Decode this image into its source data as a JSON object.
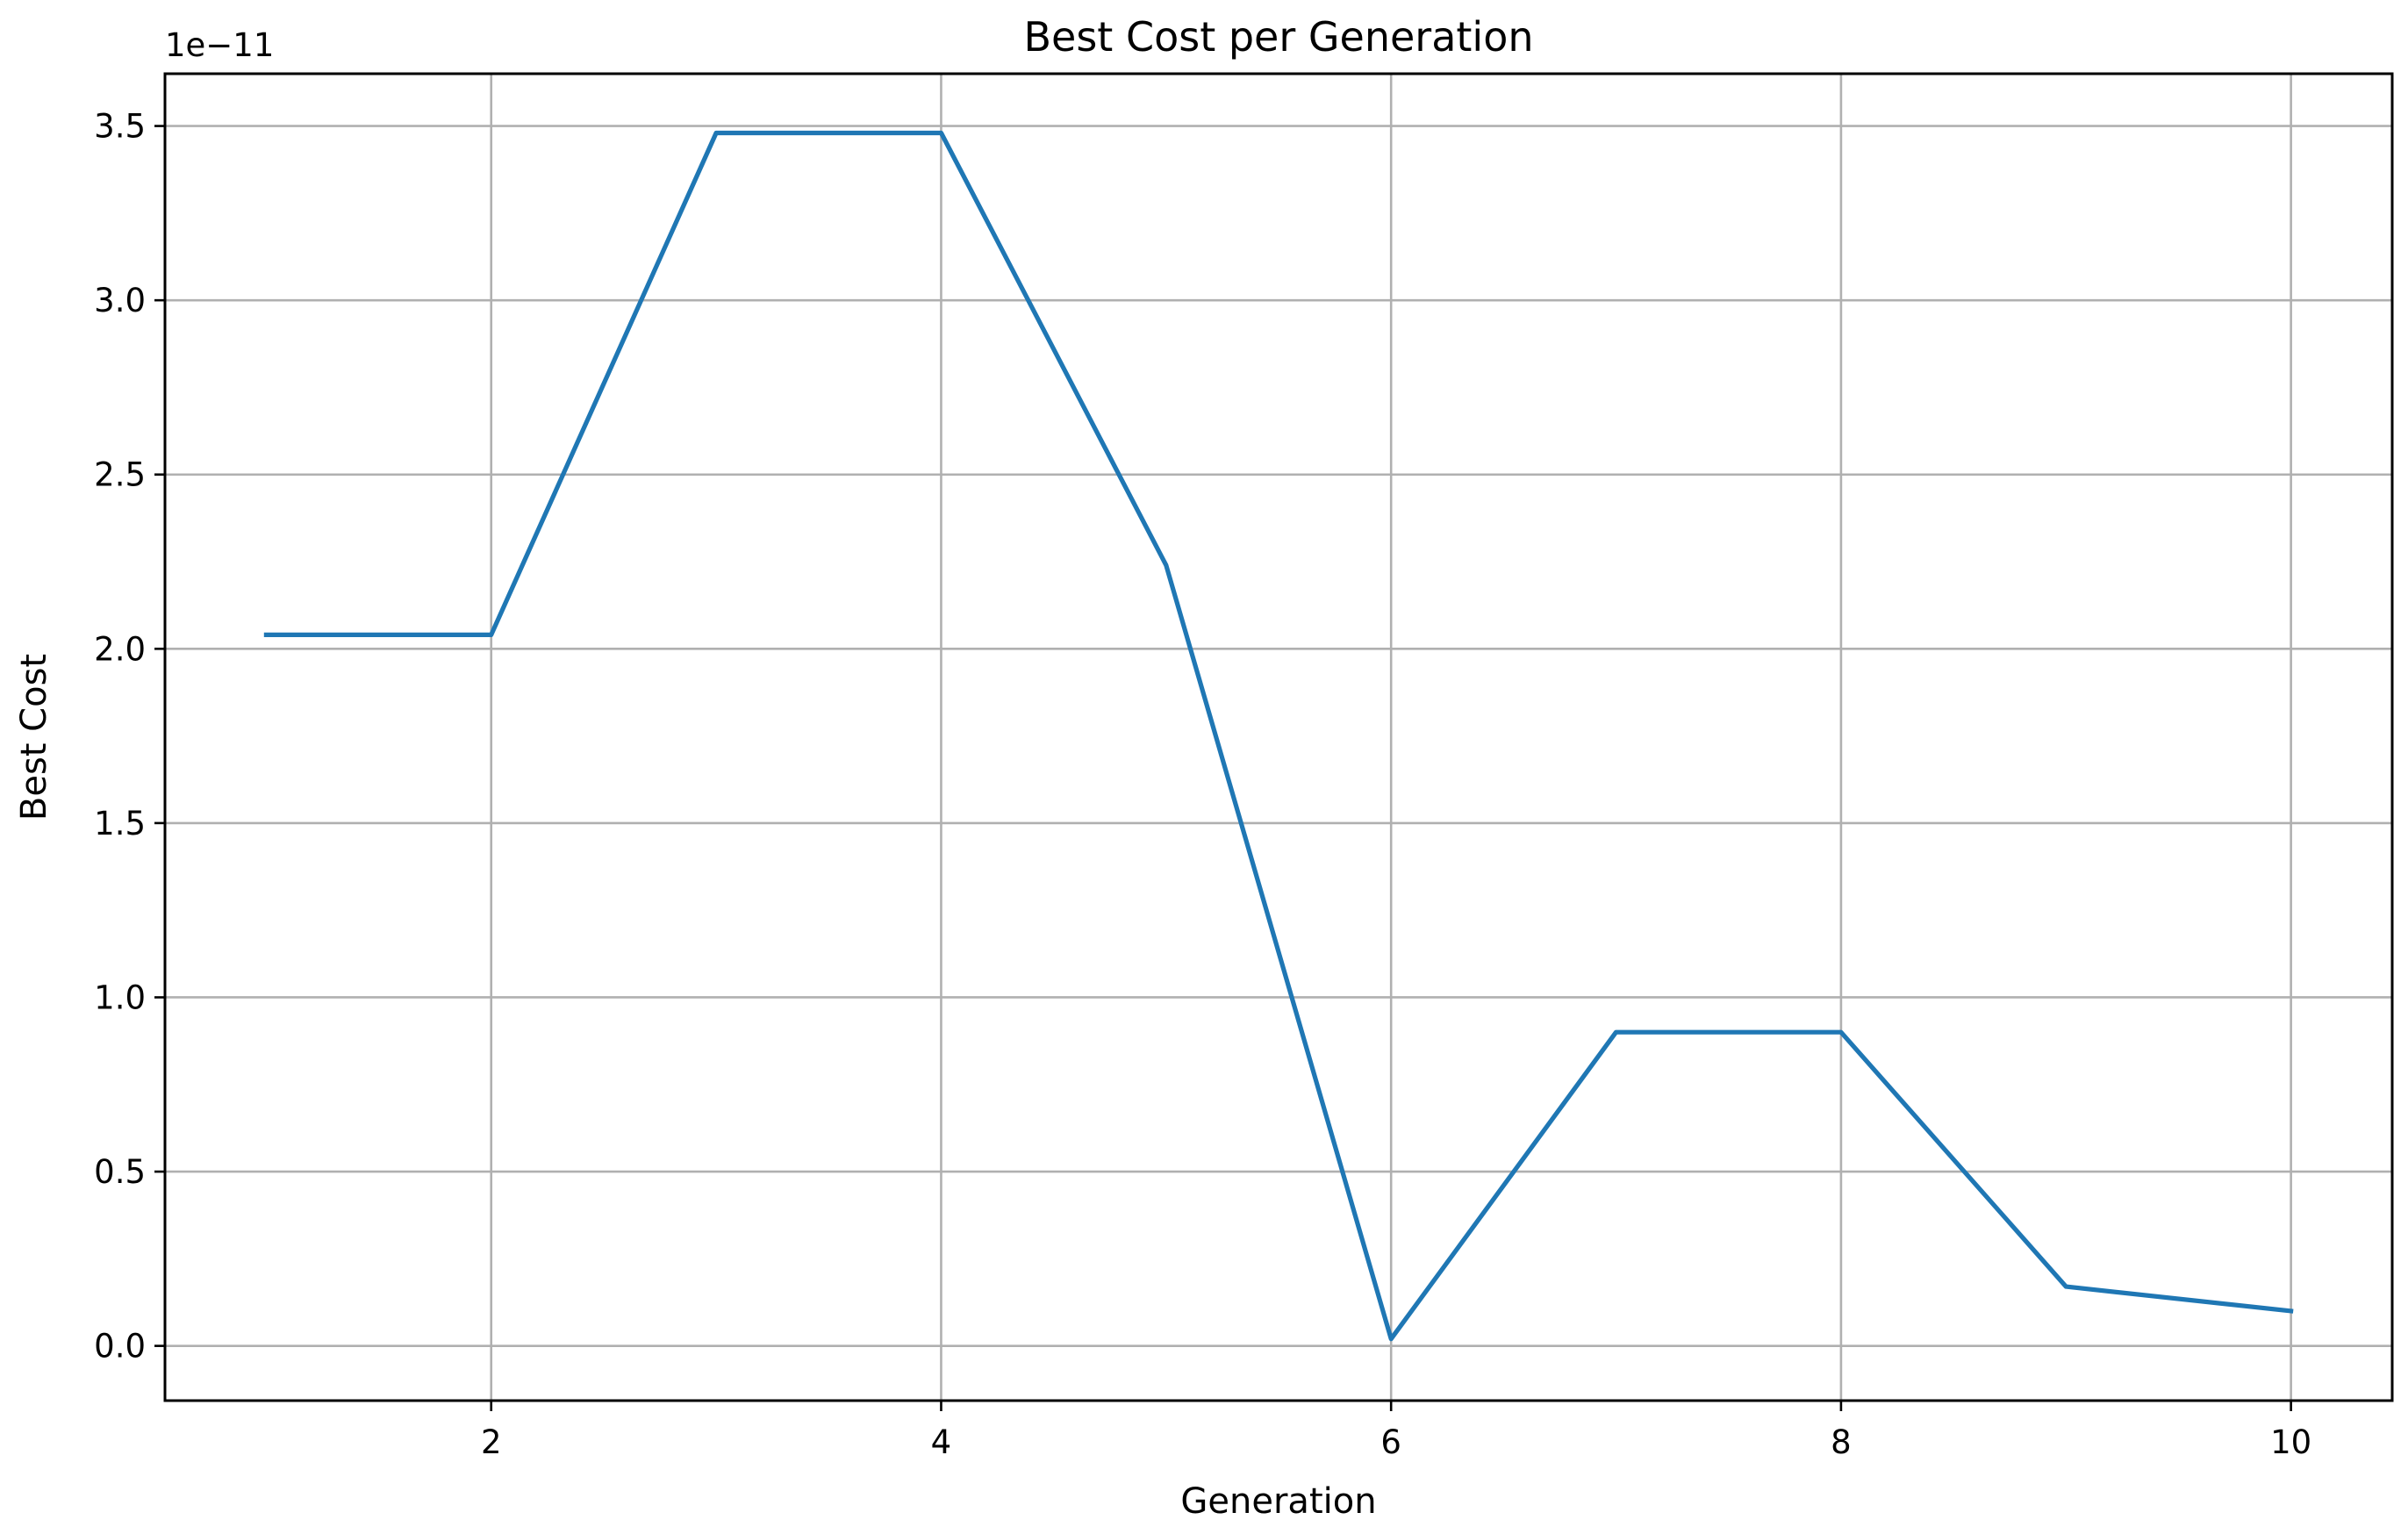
{
  "chart_data": {
    "type": "line",
    "title": "Best Cost per Generation",
    "xlabel": "Generation",
    "ylabel": "Best Cost",
    "y_offset_label": "1e−11",
    "xlim": [
      0.55,
      10.45
    ],
    "ylim": [
      -1.57e-12,
      3.65e-11
    ],
    "xticks": [
      2,
      4,
      6,
      8,
      10
    ],
    "xtick_labels": [
      "2",
      "4",
      "6",
      "8",
      "10"
    ],
    "yticks": [
      0,
      5e-12,
      1e-11,
      1.5e-11,
      2e-11,
      2.5e-11,
      3e-11,
      3.5e-11
    ],
    "ytick_labels": [
      "0.0",
      "0.5",
      "1.0",
      "1.5",
      "2.0",
      "2.5",
      "3.0",
      "3.5"
    ],
    "grid": true,
    "line_color": "#1f77b4",
    "grid_color": "#b0b0b0",
    "x": [
      1,
      2,
      3,
      4,
      5,
      6,
      7,
      8,
      9,
      10
    ],
    "series": [
      {
        "values": [
          2.04e-11,
          2.04e-11,
          3.48e-11,
          3.48e-11,
          2.24e-11,
          2e-13,
          9e-12,
          9e-12,
          1.7e-12,
          1e-12
        ]
      }
    ]
  }
}
